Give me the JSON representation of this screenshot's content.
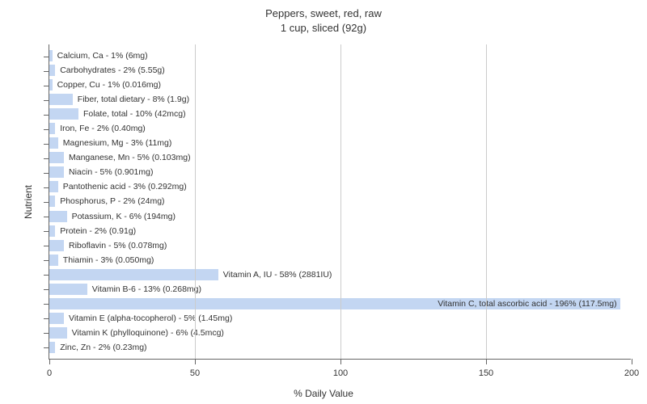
{
  "title_line1": "Peppers, sweet, red, raw",
  "title_line2": "1 cup, sliced (92g)",
  "x_axis_label": "% Daily Value",
  "y_axis_label": "Nutrient",
  "chart": {
    "type": "bar",
    "orientation": "horizontal",
    "xlim": [
      0,
      200
    ],
    "xtick_step": 50,
    "xticks": [
      0,
      50,
      100,
      150,
      200
    ],
    "bar_color": "#c3d6f2",
    "grid_color": "#cccccc",
    "axis_color": "#666666",
    "background_color": "#ffffff",
    "label_fontsize": 10.5,
    "tick_fontsize": 11,
    "axis_label_fontsize": 12,
    "title_fontsize": 13,
    "nutrients": [
      {
        "name": "Calcium, Ca",
        "pct": 1,
        "amount": "6mg"
      },
      {
        "name": "Carbohydrates",
        "pct": 2,
        "amount": "5.55g"
      },
      {
        "name": "Copper, Cu",
        "pct": 1,
        "amount": "0.016mg"
      },
      {
        "name": "Fiber, total dietary",
        "pct": 8,
        "amount": "1.9g"
      },
      {
        "name": "Folate, total",
        "pct": 10,
        "amount": "42mcg"
      },
      {
        "name": "Iron, Fe",
        "pct": 2,
        "amount": "0.40mg"
      },
      {
        "name": "Magnesium, Mg",
        "pct": 3,
        "amount": "11mg"
      },
      {
        "name": "Manganese, Mn",
        "pct": 5,
        "amount": "0.103mg"
      },
      {
        "name": "Niacin",
        "pct": 5,
        "amount": "0.901mg"
      },
      {
        "name": "Pantothenic acid",
        "pct": 3,
        "amount": "0.292mg"
      },
      {
        "name": "Phosphorus, P",
        "pct": 2,
        "amount": "24mg"
      },
      {
        "name": "Potassium, K",
        "pct": 6,
        "amount": "194mg"
      },
      {
        "name": "Protein",
        "pct": 2,
        "amount": "0.91g"
      },
      {
        "name": "Riboflavin",
        "pct": 5,
        "amount": "0.078mg"
      },
      {
        "name": "Thiamin",
        "pct": 3,
        "amount": "0.050mg"
      },
      {
        "name": "Vitamin A, IU",
        "pct": 58,
        "amount": "2881IU"
      },
      {
        "name": "Vitamin B-6",
        "pct": 13,
        "amount": "0.268mg"
      },
      {
        "name": "Vitamin C, total ascorbic acid",
        "pct": 196,
        "amount": "117.5mg"
      },
      {
        "name": "Vitamin E (alpha-tocopherol)",
        "pct": 5,
        "amount": "1.45mg"
      },
      {
        "name": "Vitamin K (phylloquinone)",
        "pct": 6,
        "amount": "4.5mcg"
      },
      {
        "name": "Zinc, Zn",
        "pct": 2,
        "amount": "0.23mg"
      }
    ]
  }
}
